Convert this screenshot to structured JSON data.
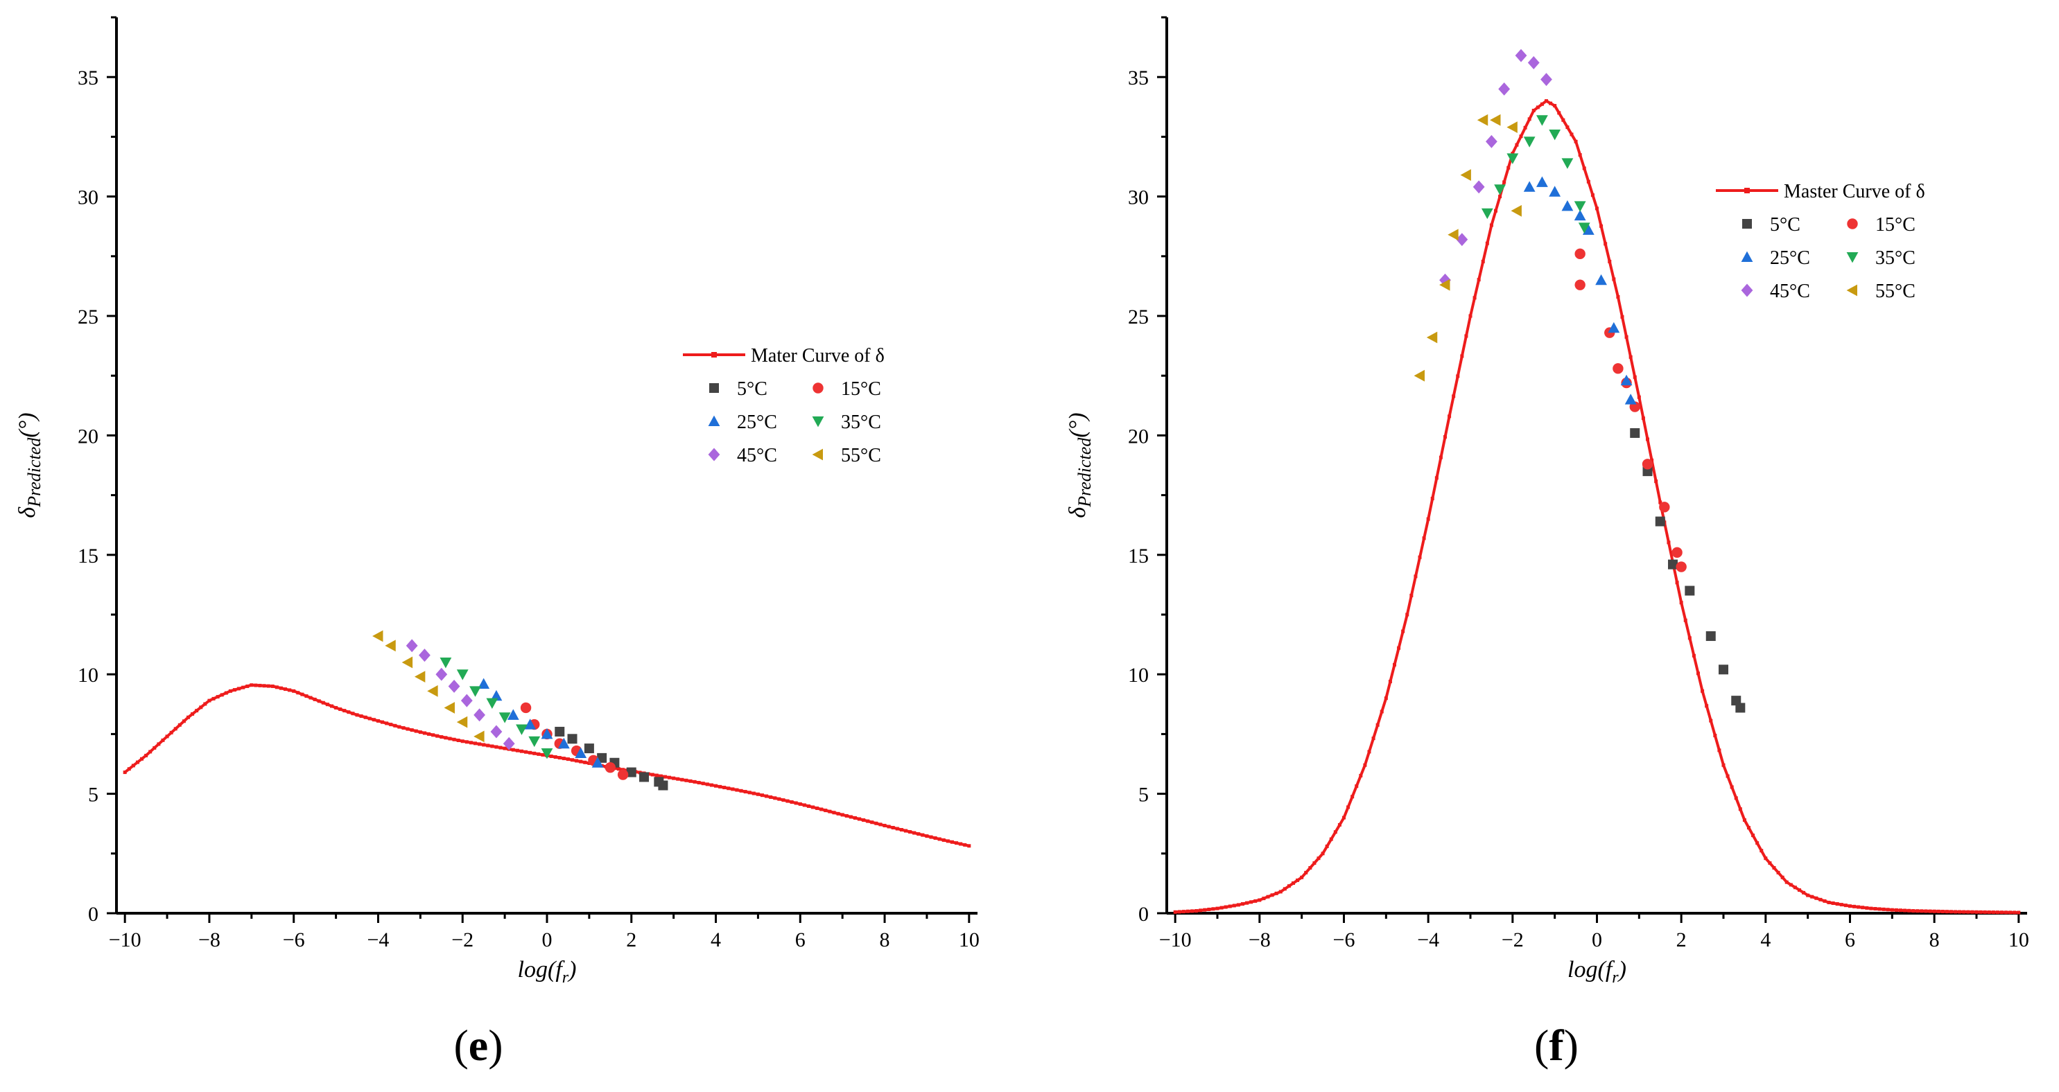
{
  "figure": {
    "panels": [
      "(e)",
      "(f)"
    ]
  },
  "chart_data": [
    {
      "type": "scatter",
      "panel_label": "(e)",
      "xlabel": "log(f_r)",
      "xlabel_main": "log(f",
      "xlabel_sub": "r",
      "xlabel_close": ")",
      "ylabel": "δ_Predicted(°)",
      "ylabel_main": "δ",
      "ylabel_sub": "Predicted",
      "ylabel_unit": "(°)",
      "xlim": [
        -10.2,
        10.2
      ],
      "ylim": [
        0,
        37.5
      ],
      "xticks": [
        -10,
        -8,
        -6,
        -4,
        -2,
        0,
        2,
        4,
        6,
        8,
        10
      ],
      "xtick_labels": [
        "−10",
        "−8",
        "−6",
        "−4",
        "−2",
        "0",
        "2",
        "4",
        "6",
        "8",
        "10"
      ],
      "yticks": [
        0,
        5,
        10,
        15,
        20,
        25,
        30,
        35
      ],
      "ytick_labels": [
        "0",
        "5",
        "10",
        "15",
        "20",
        "25",
        "30",
        "35"
      ],
      "legend_position": "center-right",
      "legend": [
        "Mater Curve of δ",
        "5°C",
        "15°C",
        "25°C",
        "35°C",
        "45°C",
        "55°C"
      ],
      "master_curve": {
        "name": "Mater Curve of δ",
        "color": "#ee1c1c",
        "x": [
          -10,
          -9.5,
          -9,
          -8.5,
          -8,
          -7.5,
          -7,
          -6.5,
          -6,
          -5.5,
          -5,
          -4.5,
          -4,
          -3.5,
          -3,
          -2.5,
          -2,
          -1.5,
          -1,
          -0.5,
          0,
          0.5,
          1,
          1.5,
          2,
          2.5,
          3,
          3.5,
          4,
          4.5,
          5,
          5.5,
          6,
          6.5,
          7,
          7.5,
          8,
          8.5,
          9,
          9.5,
          10
        ],
        "y": [
          5.9,
          6.6,
          7.4,
          8.2,
          8.9,
          9.3,
          9.55,
          9.5,
          9.3,
          8.95,
          8.6,
          8.3,
          8.05,
          7.8,
          7.58,
          7.38,
          7.2,
          7.05,
          6.9,
          6.75,
          6.6,
          6.45,
          6.28,
          6.1,
          5.95,
          5.8,
          5.65,
          5.5,
          5.33,
          5.16,
          4.98,
          4.78,
          4.57,
          4.35,
          4.12,
          3.9,
          3.67,
          3.45,
          3.23,
          3.02,
          2.82
        ]
      },
      "series": [
        {
          "name": "5°C",
          "marker": "square",
          "color": "#444444",
          "x": [
            0.3,
            0.6,
            1.0,
            1.3,
            1.6,
            2.0,
            2.3,
            2.65,
            2.75
          ],
          "y": [
            7.6,
            7.3,
            6.9,
            6.5,
            6.3,
            5.9,
            5.7,
            5.5,
            5.35
          ]
        },
        {
          "name": "15°C",
          "marker": "circle",
          "color": "#ee3333",
          "x": [
            -0.5,
            -0.3,
            0.0,
            0.3,
            0.7,
            1.1,
            1.5,
            1.8
          ],
          "y": [
            8.6,
            7.9,
            7.5,
            7.1,
            6.8,
            6.4,
            6.1,
            5.8
          ]
        },
        {
          "name": "25°C",
          "marker": "triangle-up",
          "color": "#1f6fd8",
          "x": [
            -1.5,
            -1.2,
            -0.8,
            -0.4,
            0.0,
            0.4,
            0.8,
            1.2
          ],
          "y": [
            9.6,
            9.1,
            8.3,
            7.9,
            7.5,
            7.1,
            6.7,
            6.3
          ]
        },
        {
          "name": "35°C",
          "marker": "triangle-down",
          "color": "#22aa55",
          "x": [
            -2.4,
            -2.0,
            -1.7,
            -1.3,
            -1.0,
            -0.6,
            -0.3,
            0.0
          ],
          "y": [
            10.5,
            10.0,
            9.3,
            8.8,
            8.2,
            7.7,
            7.2,
            6.7
          ]
        },
        {
          "name": "45°C",
          "marker": "diamond",
          "color": "#aa66dd",
          "x": [
            -3.2,
            -2.9,
            -2.5,
            -2.2,
            -1.9,
            -1.6,
            -1.2,
            -0.9
          ],
          "y": [
            11.2,
            10.8,
            10.0,
            9.5,
            8.9,
            8.3,
            7.6,
            7.1
          ]
        },
        {
          "name": "55°C",
          "marker": "triangle-left",
          "color": "#c89a10",
          "x": [
            -4.0,
            -3.7,
            -3.3,
            -3.0,
            -2.7,
            -2.3,
            -2.0,
            -1.6
          ],
          "y": [
            11.6,
            11.2,
            10.5,
            9.9,
            9.3,
            8.6,
            8.0,
            7.4
          ]
        }
      ]
    },
    {
      "type": "scatter",
      "panel_label": "(f)",
      "xlabel": "log(f_r)",
      "xlabel_main": "log(f",
      "xlabel_sub": "r",
      "xlabel_close": ")",
      "ylabel": "δ_Predicted(°)",
      "ylabel_main": "δ",
      "ylabel_sub": "Predicted",
      "ylabel_unit": "(°)",
      "xlim": [
        -10.2,
        10.2
      ],
      "ylim": [
        0,
        37.5
      ],
      "xticks": [
        -10,
        -8,
        -6,
        -4,
        -2,
        0,
        2,
        4,
        6,
        8,
        10
      ],
      "xtick_labels": [
        "−10",
        "−8",
        "−6",
        "−4",
        "−2",
        "0",
        "2",
        "4",
        "6",
        "8",
        "10"
      ],
      "yticks": [
        0,
        5,
        10,
        15,
        20,
        25,
        30,
        35
      ],
      "ytick_labels": [
        "0",
        "5",
        "10",
        "15",
        "20",
        "25",
        "30",
        "35"
      ],
      "legend_position": "top-right",
      "legend": [
        "Master Curve of δ",
        "5°C",
        "15°C",
        "25°C",
        "35°C",
        "45°C",
        "55°C"
      ],
      "master_curve": {
        "name": "Master Curve of δ",
        "color": "#ee1c1c",
        "x": [
          -10,
          -9.5,
          -9,
          -8.5,
          -8,
          -7.5,
          -7,
          -6.5,
          -6,
          -5.5,
          -5,
          -4.5,
          -4,
          -3.5,
          -3,
          -2.5,
          -2,
          -1.5,
          -1.2,
          -1,
          -0.5,
          0,
          0.5,
          1,
          1.5,
          2,
          2.5,
          3,
          3.5,
          4,
          4.5,
          5,
          5.5,
          6,
          6.5,
          7,
          7.5,
          8,
          8.5,
          9,
          9.5,
          10
        ],
        "y": [
          0.05,
          0.1,
          0.2,
          0.35,
          0.55,
          0.9,
          1.5,
          2.5,
          4.0,
          6.2,
          9.0,
          12.5,
          16.5,
          20.8,
          25.0,
          28.8,
          31.8,
          33.6,
          34.0,
          33.8,
          32.3,
          29.5,
          25.8,
          21.6,
          17.2,
          13.0,
          9.3,
          6.2,
          3.9,
          2.3,
          1.3,
          0.75,
          0.45,
          0.3,
          0.2,
          0.14,
          0.1,
          0.08,
          0.06,
          0.05,
          0.04,
          0.03
        ]
      },
      "series": [
        {
          "name": "5°C",
          "marker": "square",
          "color": "#444444",
          "x": [
            0.9,
            1.2,
            1.5,
            1.8,
            2.2,
            2.7,
            3.0,
            3.3,
            3.4
          ],
          "y": [
            20.1,
            18.5,
            16.4,
            14.6,
            13.5,
            11.6,
            10.2,
            8.9,
            8.6
          ]
        },
        {
          "name": "15°C",
          "marker": "circle",
          "color": "#ee3333",
          "x": [
            -0.4,
            -0.4,
            0.3,
            0.5,
            0.7,
            0.9,
            1.2,
            1.6,
            1.9,
            2.0
          ],
          "y": [
            27.6,
            26.3,
            24.3,
            22.8,
            22.2,
            21.2,
            18.8,
            17.0,
            15.1,
            14.5
          ]
        },
        {
          "name": "25°C",
          "marker": "triangle-up",
          "color": "#1f6fd8",
          "x": [
            -1.6,
            -1.3,
            -1.0,
            -0.7,
            -0.4,
            -0.2,
            0.1,
            0.4,
            0.7,
            0.8
          ],
          "y": [
            30.4,
            30.6,
            30.2,
            29.6,
            29.2,
            28.6,
            26.5,
            24.5,
            22.3,
            21.5
          ]
        },
        {
          "name": "35°C",
          "marker": "triangle-down",
          "color": "#22aa55",
          "x": [
            -2.6,
            -2.3,
            -2.0,
            -1.6,
            -1.3,
            -1.0,
            -0.7,
            -0.4,
            -0.3
          ],
          "y": [
            29.3,
            30.3,
            31.6,
            32.3,
            33.2,
            32.6,
            31.4,
            29.6,
            28.7
          ]
        },
        {
          "name": "45°C",
          "marker": "diamond",
          "color": "#aa66dd",
          "x": [
            -3.6,
            -3.2,
            -2.8,
            -2.5,
            -2.2,
            -1.8,
            -1.5,
            -1.2
          ],
          "y": [
            26.5,
            28.2,
            30.4,
            32.3,
            34.5,
            35.9,
            35.6,
            34.9
          ]
        },
        {
          "name": "55°C",
          "marker": "triangle-left",
          "color": "#c89a10",
          "x": [
            -4.2,
            -3.9,
            -3.6,
            -3.4,
            -3.1,
            -2.7,
            -2.4,
            -2.0,
            -1.9
          ],
          "y": [
            22.5,
            24.1,
            26.3,
            28.4,
            30.9,
            33.2,
            33.2,
            32.9,
            29.4
          ]
        }
      ]
    }
  ]
}
